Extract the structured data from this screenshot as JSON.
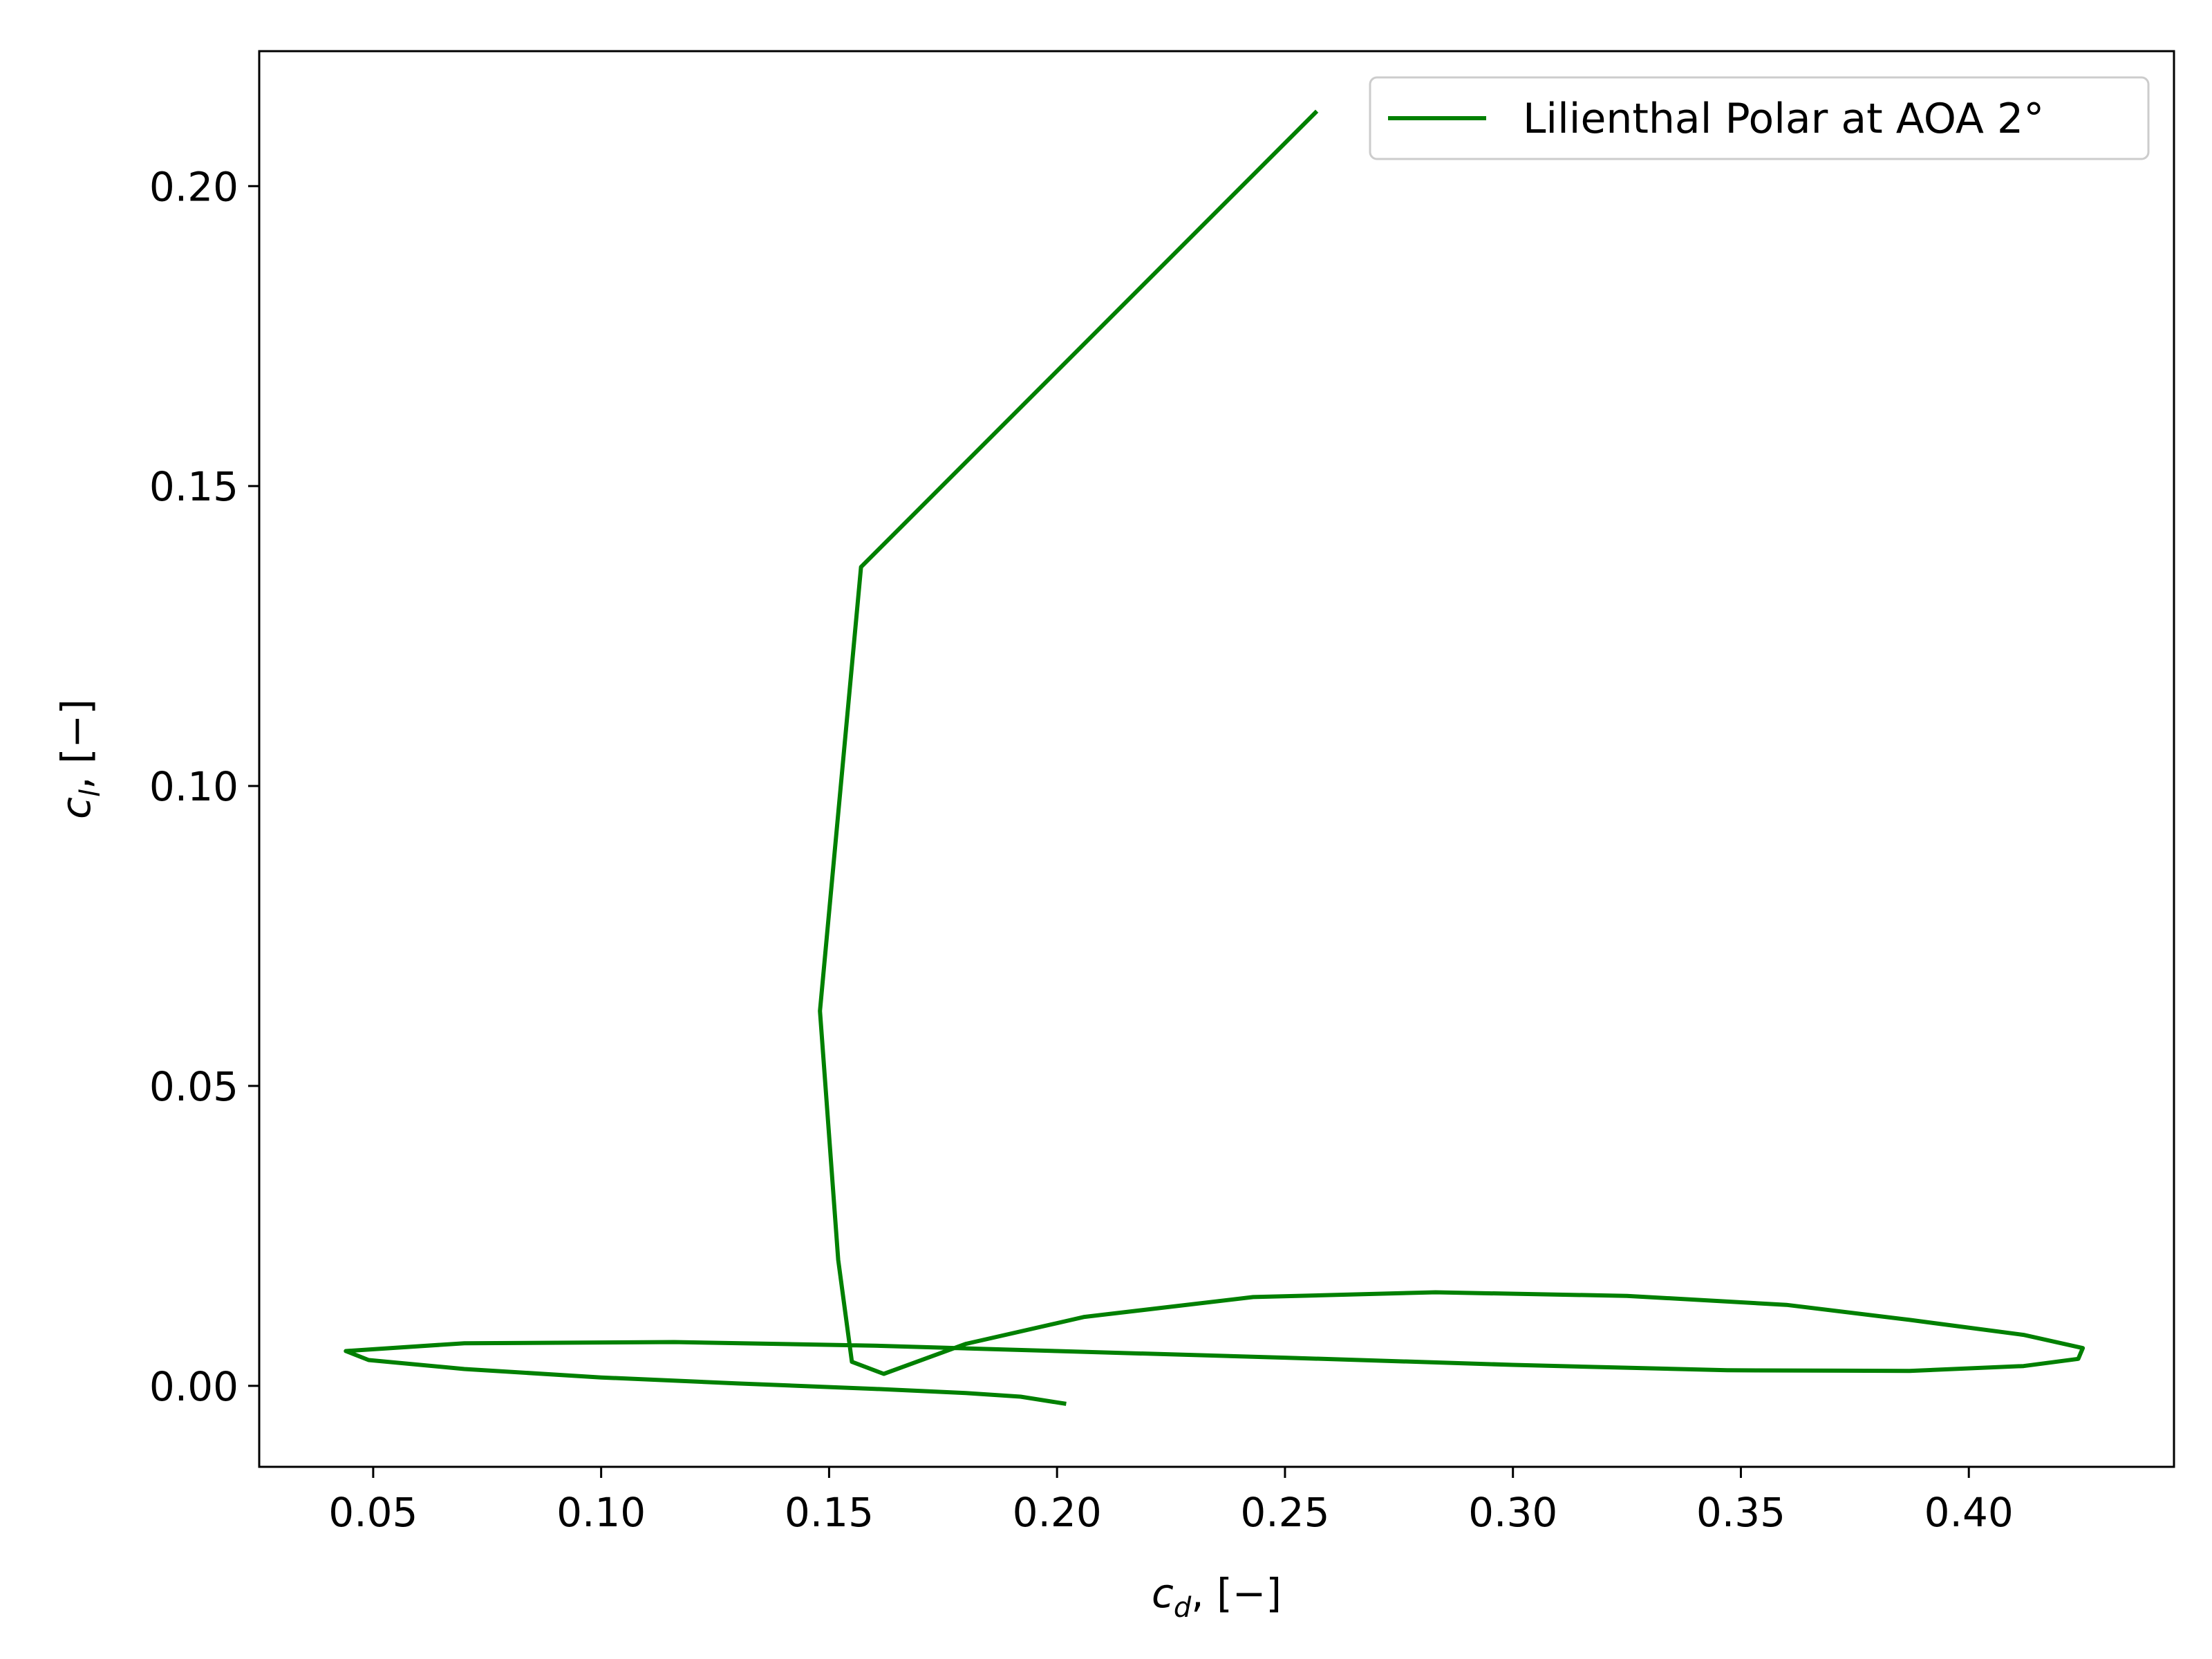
{
  "chart_data": {
    "type": "line",
    "xlabel_symbol": "c",
    "xlabel_subscript": "d",
    "xlabel_unit": ", [−]",
    "ylabel_symbol": "c",
    "ylabel_subscript": "l",
    "ylabel_unit": ", [−]",
    "xlim": [
      0.025,
      0.445
    ],
    "ylim": [
      -0.0135,
      0.2225
    ],
    "xticks": [
      0.05,
      0.1,
      0.15,
      0.2,
      0.25,
      0.3,
      0.35,
      0.4
    ],
    "xtick_labels": [
      "0.05",
      "0.10",
      "0.15",
      "0.20",
      "0.25",
      "0.30",
      "0.35",
      "0.40"
    ],
    "yticks": [
      0.0,
      0.05,
      0.1,
      0.15,
      0.2
    ],
    "ytick_labels": [
      "0.00",
      "0.05",
      "0.10",
      "0.15",
      "0.20"
    ],
    "grid": false,
    "legend_position": "top-right",
    "series": [
      {
        "name": "Lilienthal Polar at AOA 2°",
        "color": "#008000",
        "x": [
          0.257,
          0.157,
          0.148,
          0.152,
          0.155,
          0.162,
          0.18,
          0.206,
          0.243,
          0.283,
          0.325,
          0.36,
          0.387,
          0.412,
          0.425,
          0.424,
          0.412,
          0.387,
          0.347,
          0.3,
          0.25,
          0.2,
          0.16,
          0.116,
          0.07,
          0.044,
          0.049,
          0.07,
          0.1,
          0.13,
          0.16,
          0.18,
          0.192,
          0.202
        ],
        "y": [
          0.2125,
          0.1365,
          0.0625,
          0.021,
          0.004,
          0.002,
          0.007,
          0.0115,
          0.0148,
          0.0156,
          0.015,
          0.0135,
          0.011,
          0.0085,
          0.0063,
          0.0045,
          0.0033,
          0.0025,
          0.0026,
          0.0035,
          0.0047,
          0.0058,
          0.0067,
          0.0073,
          0.0071,
          0.0058,
          0.0043,
          0.0028,
          0.0014,
          0.0004,
          -0.0005,
          -0.0012,
          -0.0018,
          -0.003
        ]
      }
    ]
  }
}
